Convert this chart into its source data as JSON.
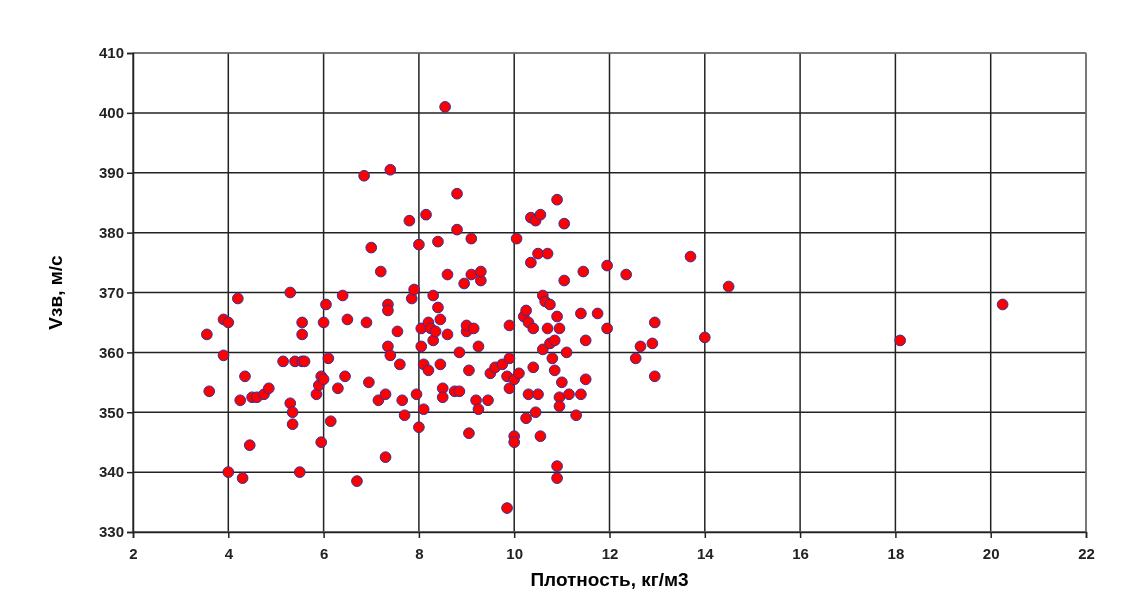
{
  "chart_data": {
    "type": "scatter",
    "xlabel": "Плотность, кг/м3",
    "ylabel": "Vзв, м/с",
    "xlim": [
      2,
      22
    ],
    "xticks": [
      2,
      4,
      6,
      8,
      10,
      12,
      14,
      16,
      18,
      20,
      22
    ],
    "ylim": [
      330,
      410
    ],
    "yticks": [
      330,
      340,
      350,
      360,
      370,
      380,
      390,
      400,
      410
    ],
    "grid": true,
    "marker": "circle",
    "series": [
      {
        "color": "#ff0000",
        "x": [
          3.55,
          3.6,
          3.9,
          4.0,
          3.9,
          4.0,
          4.2,
          4.25,
          4.3,
          4.35,
          4.45,
          4.5,
          4.6,
          4.75,
          4.85,
          5.15,
          5.3,
          5.3,
          5.35,
          5.35,
          5.4,
          5.5,
          5.55,
          5.55,
          5.55,
          5.6,
          5.85,
          5.9,
          5.95,
          6.0,
          5.95,
          6.0,
          6.05,
          6.1,
          6.15,
          6.3,
          6.4,
          6.45,
          6.5,
          6.7,
          6.85,
          6.9,
          6.95,
          7.0,
          7.15,
          7.2,
          7.3,
          7.3,
          7.35,
          7.35,
          7.35,
          7.4,
          7.4,
          7.55,
          7.6,
          7.65,
          7.7,
          7.8,
          7.85,
          7.9,
          7.95,
          8.0,
          8.0,
          8.05,
          8.05,
          8.1,
          8.1,
          8.15,
          8.2,
          8.2,
          8.25,
          8.3,
          8.3,
          8.35,
          8.4,
          8.45,
          8.4,
          8.45,
          8.5,
          8.5,
          8.55,
          8.6,
          8.6,
          8.75,
          8.8,
          8.8,
          8.85,
          8.85,
          8.95,
          9.0,
          9.0,
          9.05,
          9.05,
          9.1,
          9.1,
          9.15,
          9.2,
          9.25,
          9.25,
          9.3,
          9.3,
          9.45,
          9.5,
          9.6,
          9.75,
          9.85,
          9.9,
          9.85,
          9.9,
          9.9,
          10.0,
          10.0,
          10.05,
          10.0,
          10.1,
          10.2,
          10.25,
          10.25,
          10.3,
          10.3,
          10.35,
          10.35,
          10.4,
          10.4,
          10.45,
          10.45,
          10.5,
          10.5,
          10.55,
          10.55,
          10.6,
          10.6,
          10.65,
          10.7,
          10.7,
          10.75,
          10.75,
          10.8,
          10.85,
          10.85,
          10.9,
          10.9,
          10.9,
          10.9,
          10.95,
          10.95,
          10.95,
          11.0,
          11.05,
          11.05,
          11.1,
          11.15,
          11.3,
          11.4,
          11.4,
          11.45,
          11.5,
          11.5,
          11.75,
          11.95,
          11.95,
          12.35,
          12.55,
          12.65,
          12.9,
          12.95,
          12.95,
          13.7,
          14.0,
          14.5,
          18.1,
          20.25
        ],
        "values": [
          363,
          353.5,
          365.5,
          365,
          359.5,
          340,
          369,
          352,
          339,
          356,
          344.5,
          352.5,
          352.5,
          353,
          354,
          358.5,
          370,
          351.5,
          350,
          348,
          358.5,
          340,
          358.5,
          365,
          363,
          358.5,
          353,
          354.5,
          356,
          355.5,
          345,
          365,
          368,
          359,
          348.5,
          354,
          369.5,
          356,
          365.5,
          338.5,
          389.5,
          365,
          355,
          377.5,
          352,
          373.5,
          353,
          342.5,
          368,
          367,
          361,
          390.5,
          359.5,
          363.5,
          358,
          352,
          349.5,
          382,
          369,
          370.5,
          353,
          347.5,
          378,
          364,
          361,
          350.5,
          358,
          383,
          357,
          365,
          364,
          369.5,
          362,
          363.5,
          378.5,
          358,
          367.5,
          365.5,
          354,
          352.5,
          401,
          373,
          363,
          353.5,
          386.5,
          380.5,
          360,
          353.5,
          371.5,
          363.5,
          364.5,
          346.5,
          357,
          379,
          373,
          364,
          352,
          361,
          350.5,
          372,
          373.5,
          352,
          356.5,
          357.5,
          358,
          356,
          354,
          334,
          359,
          364.5,
          346,
          345,
          379,
          355.5,
          356.5,
          366,
          367,
          349,
          353,
          365,
          382.5,
          375,
          357.5,
          364,
          382,
          350,
          376.5,
          353,
          346,
          383,
          369.5,
          360.5,
          368.5,
          376.5,
          364,
          368,
          361.5,
          359,
          362,
          357,
          385.5,
          366,
          341,
          339,
          364,
          352.5,
          351,
          355,
          372,
          381.5,
          360,
          353,
          349.5,
          353,
          366.5,
          373.5,
          362,
          355.5,
          366.5,
          374.5,
          364,
          373,
          359,
          361,
          361.5,
          356,
          365,
          376,
          362.5,
          371,
          362,
          368
        ]
      }
    ]
  }
}
